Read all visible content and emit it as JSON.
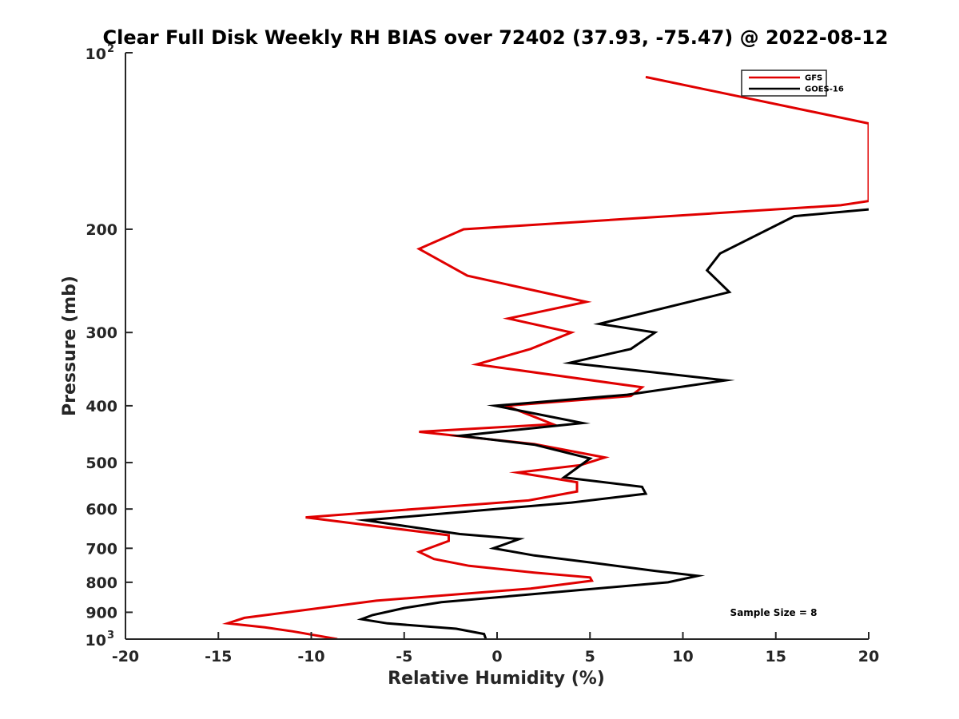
{
  "chart_data": {
    "type": "line",
    "title": "Clear Full Disk Weekly RH BIAS over 72402 (37.93, -75.47) @ 2022-08-12",
    "xlabel": "Relative Humidity (%)",
    "ylabel": "Pressure (mb)",
    "xlim": [
      -20,
      20
    ],
    "ylim": [
      1000,
      100
    ],
    "yscale": "log",
    "y_reversed": true,
    "x_ticks": [
      "-20",
      "-15",
      "-10",
      "-5",
      "0",
      "5",
      "10",
      "15",
      "20"
    ],
    "y_ticks": [
      "200",
      "300",
      "400",
      "500",
      "600",
      "700",
      "800",
      "900"
    ],
    "y_tick_top": {
      "base": "10",
      "exp": "2"
    },
    "y_tick_bottom": {
      "base": "10",
      "exp": "3"
    },
    "grid": false,
    "legend_position": "top-right",
    "annotation": "Sample Size = 8",
    "series": [
      {
        "name": "GFS",
        "color": "#e00000",
        "points": [
          [
            8,
            110
          ],
          [
            20,
            132
          ],
          [
            20,
            179
          ],
          [
            18.5,
            182
          ],
          [
            -1.8,
            200
          ],
          [
            -4.2,
            216
          ],
          [
            -1.6,
            240
          ],
          [
            4.8,
            266
          ],
          [
            0.6,
            284
          ],
          [
            4.0,
            300
          ],
          [
            1.8,
            320
          ],
          [
            -1.1,
            340
          ],
          [
            7.8,
            372
          ],
          [
            7.2,
            385
          ],
          [
            0.5,
            400
          ],
          [
            3.0,
            430
          ],
          [
            -4.2,
            443
          ],
          [
            2.0,
            465
          ],
          [
            5.8,
            490
          ],
          [
            4.5,
            505
          ],
          [
            1.1,
            520
          ],
          [
            4.3,
            540
          ],
          [
            4.3,
            560
          ],
          [
            1.7,
            580
          ],
          [
            -10.3,
            620
          ],
          [
            -2.6,
            665
          ],
          [
            -2.6,
            680
          ],
          [
            -4.2,
            710
          ],
          [
            -3.4,
            730
          ],
          [
            -1.5,
            750
          ],
          [
            2.0,
            770
          ],
          [
            5.0,
            785
          ],
          [
            5.1,
            795
          ],
          [
            1.8,
            820
          ],
          [
            -6.5,
            860
          ],
          [
            -13.6,
            920
          ],
          [
            -14.5,
            940
          ],
          [
            -12.5,
            955
          ],
          [
            -11.0,
            970
          ],
          [
            -8.6,
            1000
          ]
        ]
      },
      {
        "name": "GOES-16",
        "color": "#000000",
        "points": [
          [
            20,
            185
          ],
          [
            16,
            190
          ],
          [
            12,
            220
          ],
          [
            11.3,
            235
          ],
          [
            12.5,
            256
          ],
          [
            5.5,
            290
          ],
          [
            8.5,
            300
          ],
          [
            7.2,
            320
          ],
          [
            3.9,
            338
          ],
          [
            12.3,
            362
          ],
          [
            7.0,
            383
          ],
          [
            -0.1,
            400
          ],
          [
            4.6,
            428
          ],
          [
            -2.0,
            450
          ],
          [
            2.0,
            466
          ],
          [
            5.0,
            492
          ],
          [
            3.6,
            530
          ],
          [
            7.8,
            550
          ],
          [
            8.0,
            565
          ],
          [
            4.0,
            585
          ],
          [
            -7.1,
            627
          ],
          [
            -2.0,
            662
          ],
          [
            1.2,
            675
          ],
          [
            -0.2,
            700
          ],
          [
            2.0,
            720
          ],
          [
            5.0,
            740
          ],
          [
            8.5,
            765
          ],
          [
            10.8,
            780
          ],
          [
            9.2,
            800
          ],
          [
            -3.0,
            865
          ],
          [
            -5.0,
            885
          ],
          [
            -6.7,
            910
          ],
          [
            -7.3,
            925
          ],
          [
            -5.9,
            940
          ],
          [
            -2.2,
            960
          ],
          [
            -0.7,
            980
          ],
          [
            -0.6,
            1000
          ]
        ]
      }
    ]
  }
}
